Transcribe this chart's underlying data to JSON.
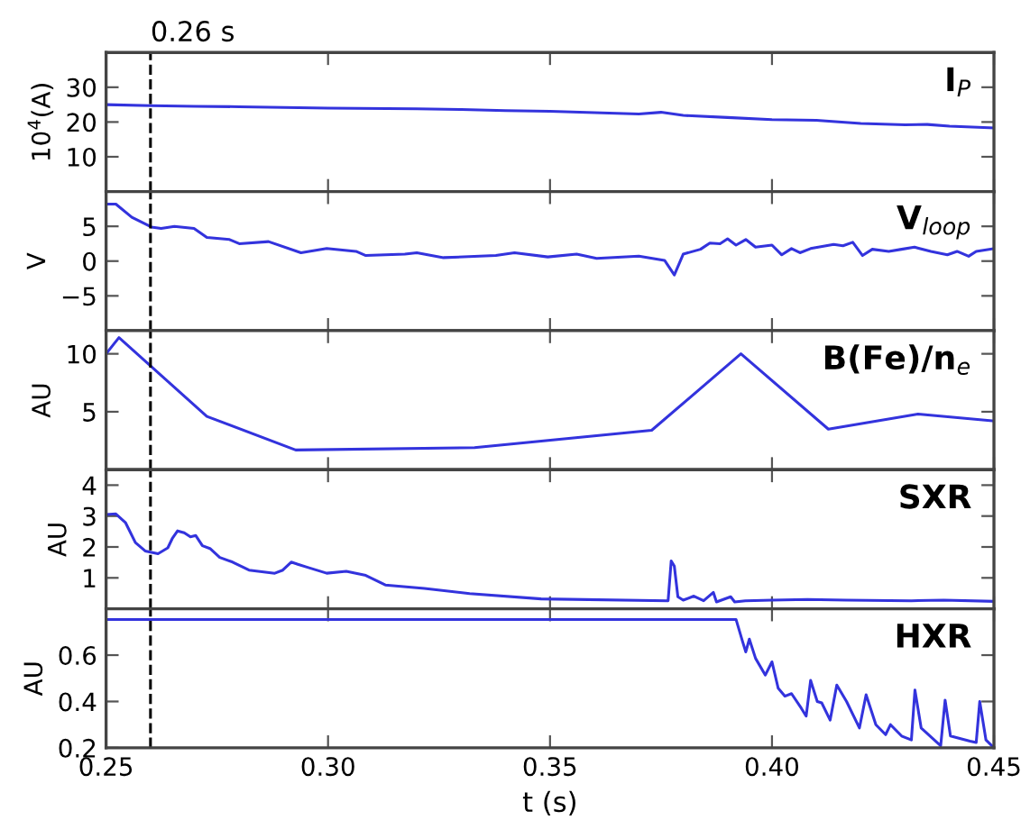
{
  "chart_data": [
    {
      "type": "line",
      "title": "I$_{P}$",
      "ylabel": "10$^{4}$(A)",
      "xlim": [
        0.25,
        0.45
      ],
      "xticks": [
        0.25,
        0.3,
        0.35,
        0.4,
        0.45
      ],
      "ylim": [
        0,
        40
      ],
      "yticks": [
        10,
        20,
        30
      ],
      "tick_labels": "y",
      "marker": "none",
      "line_style": "solid",
      "ref_lines": [
        {
          "axis": "x",
          "value": 0.26,
          "label": "0.26 s",
          "color": "#000000",
          "line_style": "dashed"
        }
      ],
      "series": [
        {
          "color": "#3333dd",
          "x": [
            0.25,
            0.26,
            0.27,
            0.28,
            0.3,
            0.32,
            0.33,
            0.34,
            0.35,
            0.36,
            0.37,
            0.375,
            0.38,
            0.39,
            0.4,
            0.41,
            0.42,
            0.43,
            0.435,
            0.44,
            0.45
          ],
          "values": [
            25.0,
            24.7,
            24.5,
            24.4,
            24.0,
            23.8,
            23.6,
            23.3,
            23.1,
            22.7,
            22.3,
            22.8,
            21.9,
            21.3,
            20.7,
            20.5,
            19.6,
            19.2,
            19.3,
            18.8,
            18.3
          ]
        }
      ]
    },
    {
      "type": "line",
      "title": "V$_{loop}$",
      "ylabel": "V",
      "xlim": [
        0.25,
        0.45
      ],
      "xticks": [
        0.25,
        0.3,
        0.35,
        0.4,
        0.45
      ],
      "ylim": [
        -10,
        10
      ],
      "yticks": [
        {
          "value": -5,
          "label": "−5"
        },
        0,
        5
      ],
      "tick_labels": "y",
      "marker": "none",
      "line_style": "solid",
      "ref_lines": [
        {
          "axis": "x",
          "value": 0.26,
          "color": "#000000",
          "line_style": "dashed"
        }
      ],
      "series": [
        {
          "color": "#3333dd",
          "x": [
            0.25,
            0.2522,
            0.2558,
            0.2602,
            0.2624,
            0.2654,
            0.2698,
            0.2727,
            0.2778,
            0.28,
            0.2866,
            0.2939,
            0.2997,
            0.3063,
            0.3085,
            0.3173,
            0.32,
            0.326,
            0.3378,
            0.342,
            0.3495,
            0.356,
            0.3605,
            0.37,
            0.3758,
            0.378,
            0.38,
            0.3839,
            0.386,
            0.3883,
            0.39,
            0.3919,
            0.3941,
            0.3963,
            0.4,
            0.4022,
            0.4044,
            0.4063,
            0.4087,
            0.4139,
            0.416,
            0.4182,
            0.4204,
            0.4226,
            0.4263,
            0.4292,
            0.4321,
            0.4358,
            0.4395,
            0.4417,
            0.4443,
            0.446,
            0.45
          ],
          "values": [
            8.2,
            8.2,
            6.3,
            4.9,
            4.7,
            5.0,
            4.7,
            3.4,
            3.1,
            2.5,
            2.8,
            1.2,
            1.8,
            1.4,
            0.8,
            1.0,
            1.2,
            0.5,
            0.8,
            1.2,
            0.6,
            1.0,
            0.4,
            0.7,
            0.1,
            -2.0,
            1.0,
            1.7,
            2.6,
            2.5,
            3.2,
            2.3,
            3.1,
            2.0,
            2.3,
            0.9,
            1.8,
            1.2,
            1.8,
            2.4,
            2.2,
            2.7,
            0.8,
            1.7,
            1.4,
            1.7,
            2.0,
            1.4,
            0.9,
            1.4,
            0.7,
            1.4,
            1.8
          ]
        }
      ]
    },
    {
      "type": "line",
      "title": "B(Fe)/n$_{e}$",
      "ylabel": "AU",
      "xlim": [
        0.25,
        0.45
      ],
      "xticks": [
        0.25,
        0.3,
        0.35,
        0.4,
        0.45
      ],
      "ylim": [
        0,
        12
      ],
      "yticks": [
        5,
        10
      ],
      "tick_labels": "y",
      "marker": "none",
      "line_style": "solid",
      "ref_lines": [
        {
          "axis": "x",
          "value": 0.26,
          "color": "#000000",
          "line_style": "dashed"
        }
      ],
      "series": [
        {
          "color": "#3333dd",
          "x": [
            0.25,
            0.2529,
            0.2727,
            0.2927,
            0.333,
            0.3729,
            0.393,
            0.4127,
            0.4329,
            0.45
          ],
          "values": [
            10.0,
            11.4,
            4.6,
            1.7,
            1.9,
            3.4,
            10.0,
            3.5,
            4.8,
            4.2
          ]
        }
      ]
    },
    {
      "type": "line",
      "title": "SXR",
      "ylabel": "AU",
      "xlim": [
        0.25,
        0.45
      ],
      "xticks": [
        0.25,
        0.3,
        0.35,
        0.4,
        0.45
      ],
      "ylim": [
        0,
        4.5
      ],
      "yticks": [
        1,
        2,
        3,
        4
      ],
      "tick_labels": "y",
      "marker": "none",
      "line_style": "solid",
      "ref_lines": [
        {
          "axis": "x",
          "value": 0.26,
          "color": "#000000",
          "line_style": "dashed"
        }
      ],
      "series": [
        {
          "color": "#3333dd",
          "x": [
            0.25,
            0.2522,
            0.2544,
            0.2566,
            0.2588,
            0.2617,
            0.2639,
            0.2649,
            0.2661,
            0.2676,
            0.269,
            0.2702,
            0.2717,
            0.2734,
            0.2756,
            0.2785,
            0.2822,
            0.288,
            0.2898,
            0.2917,
            0.2932,
            0.2954,
            0.2997,
            0.3041,
            0.3085,
            0.3129,
            0.3217,
            0.3319,
            0.348,
            0.3766,
            0.3773,
            0.378,
            0.3788,
            0.38,
            0.3824,
            0.3846,
            0.3868,
            0.3875,
            0.3907,
            0.3916,
            0.394,
            0.4,
            0.408,
            0.4167,
            0.4314,
            0.4387,
            0.45
          ],
          "values": [
            3.05,
            3.07,
            2.78,
            2.14,
            1.87,
            1.78,
            1.97,
            2.27,
            2.52,
            2.46,
            2.33,
            2.37,
            2.04,
            1.95,
            1.66,
            1.51,
            1.25,
            1.15,
            1.25,
            1.51,
            1.44,
            1.34,
            1.15,
            1.21,
            1.08,
            0.77,
            0.66,
            0.49,
            0.32,
            0.26,
            1.55,
            1.38,
            0.39,
            0.28,
            0.41,
            0.26,
            0.53,
            0.22,
            0.39,
            0.22,
            0.26,
            0.28,
            0.3,
            0.28,
            0.26,
            0.28,
            0.24
          ]
        }
      ]
    },
    {
      "type": "line",
      "title": "HXR",
      "ylabel": "AU",
      "xlabel": "t (s)",
      "xlim": [
        0.25,
        0.45
      ],
      "xticks": [
        {
          "value": 0.25,
          "label": "0.25"
        },
        {
          "value": 0.3,
          "label": "0.30"
        },
        {
          "value": 0.35,
          "label": "0.35"
        },
        {
          "value": 0.4,
          "label": "0.40"
        },
        {
          "value": 0.45,
          "label": "0.45"
        }
      ],
      "ylim": [
        0.2,
        0.8
      ],
      "yticks": [
        0.2,
        0.4,
        0.6
      ],
      "marker": "none",
      "line_style": "solid",
      "ref_lines": [
        {
          "axis": "x",
          "value": 0.26,
          "color": "#000000",
          "line_style": "dashed"
        }
      ],
      "series": [
        {
          "color": "#3333dd",
          "x": [
            0.25,
            0.3919,
            0.3934,
            0.3941,
            0.3949,
            0.3963,
            0.3985,
            0.4,
            0.4014,
            0.4029,
            0.4044,
            0.4066,
            0.4077,
            0.4087,
            0.4102,
            0.4112,
            0.4131,
            0.4146,
            0.4168,
            0.4197,
            0.4212,
            0.4234,
            0.4256,
            0.4267,
            0.4292,
            0.4314,
            0.4322,
            0.4336,
            0.438,
            0.439,
            0.4402,
            0.4446,
            0.446,
            0.4468,
            0.4482,
            0.45
          ],
          "values": [
            0.754,
            0.754,
            0.657,
            0.614,
            0.669,
            0.586,
            0.514,
            0.571,
            0.457,
            0.423,
            0.434,
            0.371,
            0.337,
            0.491,
            0.4,
            0.394,
            0.32,
            0.471,
            0.4,
            0.286,
            0.429,
            0.3,
            0.257,
            0.3,
            0.251,
            0.234,
            0.449,
            0.286,
            0.209,
            0.406,
            0.251,
            0.229,
            0.223,
            0.4,
            0.234,
            0.2
          ]
        }
      ]
    }
  ]
}
